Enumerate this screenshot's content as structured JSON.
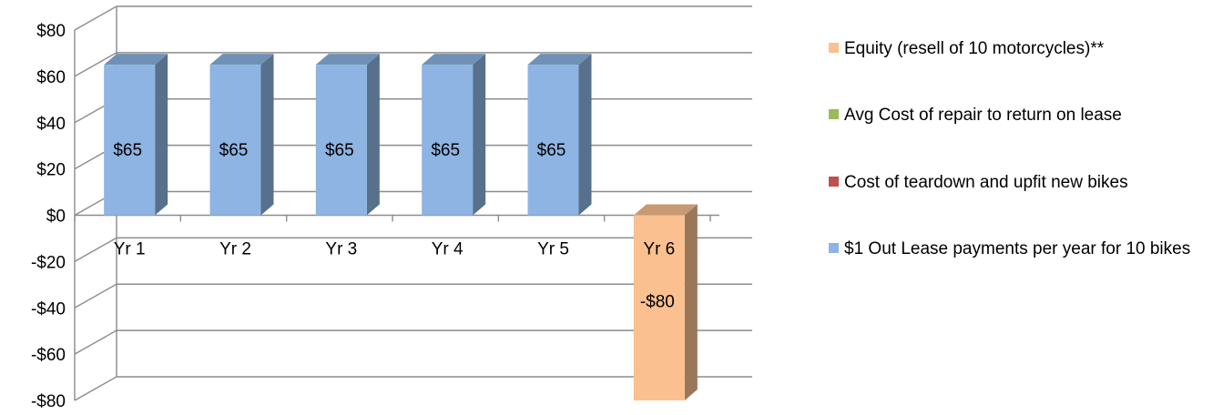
{
  "chart_data": {
    "type": "bar",
    "title": "",
    "xlabel": "",
    "ylabel": "",
    "categories": [
      "Yr 1",
      "Yr 2",
      "Yr 3",
      "Yr 4",
      "Yr 5",
      "Yr 6"
    ],
    "series": [
      {
        "name": "$1 Out Lease payments per year for 10 bikes",
        "color": "#8db4e2",
        "values": [
          65,
          65,
          65,
          65,
          65,
          0
        ]
      },
      {
        "name": "Cost of teardown and upfit new bikes",
        "color": "#c0504d",
        "values": [
          0,
          0,
          0,
          0,
          0,
          0
        ]
      },
      {
        "name": "Avg Cost of repair to return on lease",
        "color": "#9bbb59",
        "values": [
          0,
          0,
          0,
          0,
          0,
          0
        ]
      },
      {
        "name": "Equity (resell of 10 motorcycles)**",
        "color": "#fac090",
        "values": [
          0,
          0,
          0,
          0,
          0,
          -80
        ]
      }
    ],
    "data_labels": [
      "$65",
      "$65",
      "$65",
      "$65",
      "$65",
      "-$80"
    ],
    "y_ticks": [
      "$80",
      "$60",
      "$40",
      "$20",
      "$0",
      "-$20",
      "-$40",
      "-$60",
      "-$80"
    ],
    "ylim": [
      -80,
      80
    ],
    "grid": true,
    "three_d": true,
    "legend_position": "right",
    "legend_order": [
      "Equity (resell of 10 motorcycles)**",
      "Avg Cost of repair to return on lease",
      "Cost of teardown and upfit new bikes",
      "$1 Out Lease payments per year for 10 bikes"
    ]
  }
}
